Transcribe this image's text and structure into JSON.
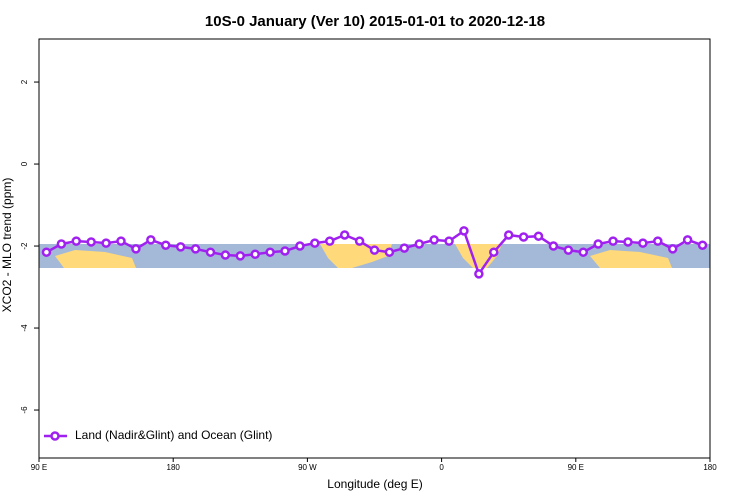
{
  "chart_data": {
    "type": "line",
    "title": "10S-0 January (Ver 10)   2015-01-01 to 2020-12-18",
    "x_label": "Longitude (deg E)",
    "y_label": "XCO2 - MLO trend (ppm)",
    "xlim": [
      90,
      540
    ],
    "ylim": [
      -7.17,
      3.05
    ],
    "xticks": [
      {
        "value": 90,
        "label": "90 E"
      },
      180,
      {
        "value": 270,
        "label": "90 W"
      },
      {
        "value": 360,
        "label": "0"
      },
      {
        "value": 450,
        "label": "90 E"
      },
      {
        "value": 540,
        "label": "180"
      }
    ],
    "yticks": [
      -6,
      -4,
      -2,
      0,
      2
    ],
    "legend_position": "bottom-left",
    "x": [
      95,
      105,
      115,
      125,
      135,
      145,
      155,
      165,
      175,
      185,
      195,
      205,
      215,
      225,
      235,
      245,
      255,
      265,
      275,
      285,
      295,
      305,
      315,
      325,
      335,
      345,
      355,
      365,
      375,
      385,
      395,
      405,
      415,
      425,
      435,
      445,
      455,
      465,
      475,
      485,
      495,
      505,
      515,
      525,
      535
    ],
    "series": [
      {
        "name": "Land (Nadir&Glint) and Ocean (Glint)",
        "color": "#a020f0",
        "values": [
          -2.15,
          -1.95,
          -1.88,
          -1.9,
          -1.93,
          -1.88,
          -2.07,
          -1.85,
          -1.98,
          -2.02,
          -2.07,
          -2.15,
          -2.22,
          -2.24,
          -2.2,
          -2.15,
          -2.12,
          -2.0,
          -1.93,
          -1.88,
          -1.73,
          -1.88,
          -2.1,
          -2.15,
          -2.05,
          -1.95,
          -1.85,
          -1.88,
          -1.63,
          -2.68,
          -2.15,
          -1.73,
          -1.78,
          -1.76,
          -2.0,
          -2.1,
          -2.15,
          -1.95,
          -1.88,
          -1.9,
          -1.93,
          -1.88,
          -2.07,
          -1.85,
          -1.98
        ]
      }
    ]
  }
}
